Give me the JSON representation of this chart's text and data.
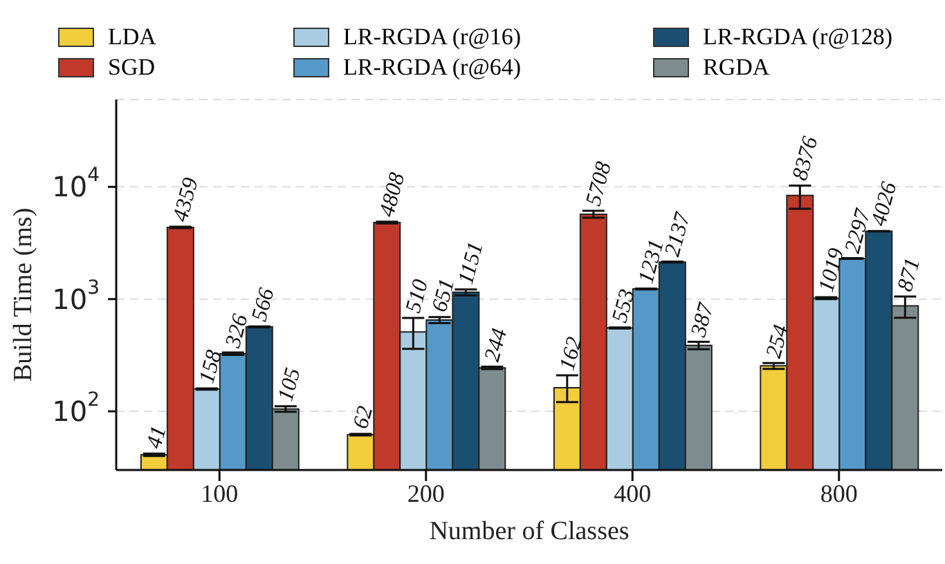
{
  "chart_data": {
    "type": "bar",
    "xlabel": "Number of Classes",
    "ylabel": "Build Time (ms)",
    "categories": [
      "100",
      "200",
      "400",
      "800"
    ],
    "series": [
      {
        "name": "LDA",
        "color": "#f2cd3c",
        "values": [
          41,
          62,
          162,
          254
        ],
        "errors": [
          1,
          1,
          [
            121,
            209
          ],
          15
        ]
      },
      {
        "name": "SGD",
        "color": "#c0392b",
        "values": [
          4359,
          4808,
          5708,
          8376
        ],
        "errors": [
          60,
          80,
          400,
          [
            6380,
            10270
          ]
        ]
      },
      {
        "name": "LR-RGDA (r@16)",
        "color": "#a9cce3",
        "values": [
          158,
          510,
          553,
          1019
        ],
        "errors": [
          2,
          [
            360,
            680
          ],
          5,
          20
        ]
      },
      {
        "name": "LR-RGDA (r@64)",
        "color": "#5499c7",
        "values": [
          326,
          651,
          1231,
          2297
        ],
        "errors": [
          8,
          40,
          10,
          15
        ]
      },
      {
        "name": "LR-RGDA (r@128)",
        "color": "#1b4f72",
        "values": [
          566,
          1151,
          2137,
          4026
        ],
        "errors": [
          5,
          70,
          20,
          20
        ]
      },
      {
        "name": "RGDA",
        "color": "#7f8c8d",
        "values": [
          105,
          244,
          387,
          871
        ],
        "errors": [
          6,
          6,
          30,
          [
            682,
            1056
          ]
        ]
      }
    ],
    "log": "y",
    "ylim": [
      30,
      60000
    ],
    "yticks": [
      {
        "value": 100,
        "label": "10$^{2}$"
      },
      {
        "value": 1000,
        "label": "10$^{3}$"
      },
      {
        "value": 10000,
        "label": "10$^{4}$"
      }
    ],
    "grid": "y",
    "legend": "top",
    "data_labels": true
  }
}
